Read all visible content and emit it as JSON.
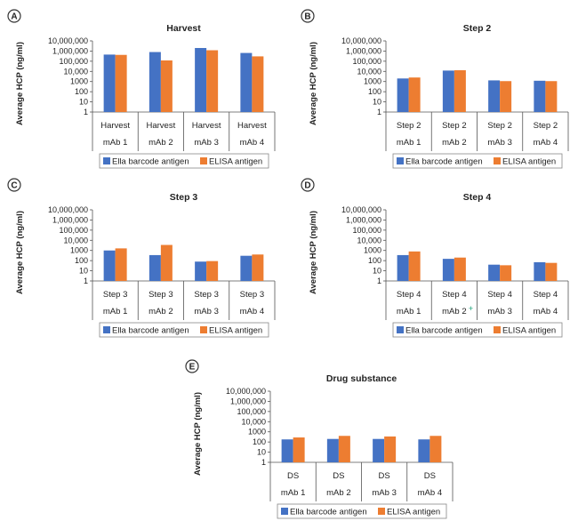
{
  "colors": {
    "ella": "#4472C4",
    "elisa": "#ED7D31"
  },
  "legend": [
    "Ella barcode antigen",
    "ELISA antigen"
  ],
  "ylabel": "Average HCP (ng/ml)",
  "yticks": [
    "10,000,000",
    "1,000,000",
    "100,000",
    "10,000",
    "1000",
    "100",
    "10",
    "1"
  ],
  "chart_data": [
    {
      "panel": "A",
      "type": "bar",
      "scale": "log",
      "ylim": [
        1,
        10000000
      ],
      "title": "Harvest",
      "categories": [
        "Harvest",
        "Harvest",
        "Harvest",
        "Harvest"
      ],
      "groups": [
        "mAb 1",
        "mAb 2",
        "mAb 3",
        "mAb 4"
      ],
      "series": [
        {
          "name": "Ella barcode antigen",
          "values": [
            450000,
            800000,
            2000000,
            650000
          ]
        },
        {
          "name": "ELISA antigen",
          "values": [
            420000,
            120000,
            1200000,
            300000
          ]
        }
      ]
    },
    {
      "panel": "B",
      "type": "bar",
      "scale": "log",
      "ylim": [
        1,
        10000000
      ],
      "title": "Step 2",
      "categories": [
        "Step 2",
        "Step 2",
        "Step 2",
        "Step 2"
      ],
      "groups": [
        "mAb 1",
        "mAb 2",
        "mAb 3",
        "mAb 4"
      ],
      "series": [
        {
          "name": "Ella barcode antigen",
          "values": [
            2000,
            12000,
            1300,
            1200
          ]
        },
        {
          "name": "ELISA antigen",
          "values": [
            2500,
            13000,
            1100,
            1100
          ]
        }
      ]
    },
    {
      "panel": "C",
      "type": "bar",
      "scale": "log",
      "ylim": [
        1,
        10000000
      ],
      "title": "Step 3",
      "categories": [
        "Step 3",
        "Step 3",
        "Step 3",
        "Step 3"
      ],
      "groups": [
        "mAb 1",
        "mAb 2",
        "mAb 3",
        "mAb 4"
      ],
      "series": [
        {
          "name": "Ella barcode antigen",
          "values": [
            1000,
            350,
            80,
            300
          ]
        },
        {
          "name": "ELISA antigen",
          "values": [
            1600,
            3500,
            90,
            400
          ]
        }
      ]
    },
    {
      "panel": "D",
      "type": "bar",
      "scale": "log",
      "ylim": [
        1,
        10000000
      ],
      "title": "Step 4",
      "categories": [
        "Step 4",
        "Step 4",
        "Step 4",
        "Step 4"
      ],
      "groups": [
        "mAb 1",
        "mAb 2",
        "mAb 3",
        "mAb 4"
      ],
      "group_markers": [
        "",
        "+",
        "",
        ""
      ],
      "series": [
        {
          "name": "Ella barcode antigen",
          "values": [
            350,
            150,
            40,
            70
          ]
        },
        {
          "name": "ELISA antigen",
          "values": [
            800,
            200,
            35,
            60
          ]
        }
      ]
    },
    {
      "panel": "E",
      "type": "bar",
      "scale": "log",
      "ylim": [
        1,
        10000000
      ],
      "title": "Drug substance",
      "categories": [
        "DS",
        "DS",
        "DS",
        "DS"
      ],
      "groups": [
        "mAb 1",
        "mAb 2",
        "mAb 3",
        "mAb 4"
      ],
      "series": [
        {
          "name": "Ella barcode antigen",
          "values": [
            180,
            200,
            200,
            180
          ]
        },
        {
          "name": "ELISA antigen",
          "values": [
            280,
            400,
            350,
            400
          ]
        }
      ]
    }
  ]
}
